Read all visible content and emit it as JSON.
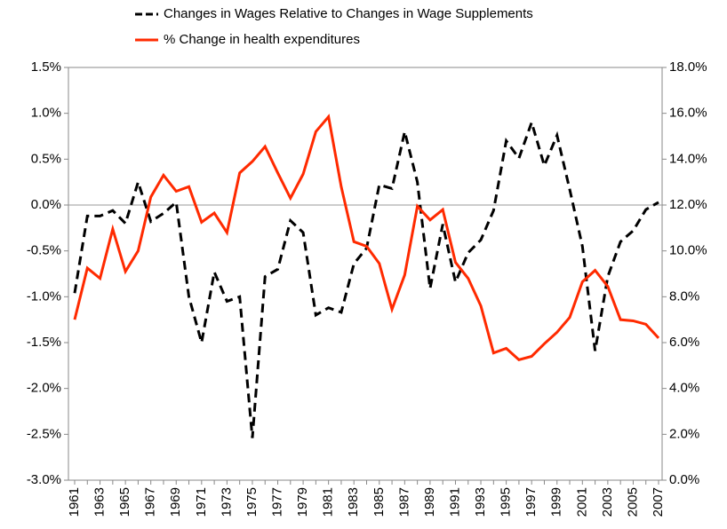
{
  "chart_data": {
    "type": "line",
    "categories": [
      "1961",
      null,
      "1963",
      null,
      "1965",
      null,
      "1967",
      null,
      "1969",
      null,
      "1971",
      null,
      "1973",
      null,
      "1975",
      null,
      "1977",
      null,
      "1979",
      null,
      "1981",
      null,
      "1983",
      null,
      "1985",
      null,
      "1987",
      null,
      "1989",
      null,
      "1991",
      null,
      "1993",
      null,
      "1995",
      null,
      "1997",
      null,
      "1999",
      null,
      "2001",
      null,
      "2003",
      null,
      "2005",
      null,
      "2007"
    ],
    "series": [
      {
        "name": "Changes in Wages Relative to Changes in Wage Supplements",
        "color": "#000000",
        "dashed": true,
        "axis": "y",
        "values": [
          -0.96,
          -0.12,
          -0.12,
          -0.06,
          -0.2,
          0.25,
          -0.18,
          -0.09,
          0.03,
          -1.0,
          -1.5,
          -0.73,
          -1.05,
          -1.0,
          -2.54,
          -0.78,
          -0.7,
          -0.17,
          -0.3,
          -1.2,
          -1.12,
          -1.17,
          -0.64,
          -0.47,
          0.22,
          0.18,
          0.8,
          0.25,
          -0.91,
          -0.21,
          -0.84,
          -0.52,
          -0.38,
          -0.06,
          0.7,
          0.51,
          0.9,
          0.43,
          0.76,
          0.17,
          -0.45,
          -1.59,
          -0.78,
          -0.4,
          -0.28,
          -0.05,
          0.03
        ]
      },
      {
        "name": "% Change in health expenditures",
        "color": "#ff2a00",
        "dashed": false,
        "axis": "y2",
        "values": [
          7.0,
          9.25,
          8.8,
          10.95,
          9.1,
          10.0,
          12.35,
          13.3,
          12.6,
          12.8,
          11.25,
          11.65,
          10.8,
          13.4,
          13.9,
          14.55,
          13.4,
          12.3,
          13.35,
          15.2,
          15.85,
          12.8,
          10.4,
          10.2,
          9.45,
          7.45,
          8.95,
          11.95,
          11.35,
          11.8,
          9.5,
          8.8,
          7.6,
          5.55,
          5.75,
          5.25,
          5.4,
          5.95,
          6.45,
          7.1,
          8.65,
          9.15,
          8.45,
          7.0,
          6.95,
          6.8,
          6.2
        ]
      }
    ],
    "ylim": [
      -3.0,
      1.5
    ],
    "yticks": [
      {
        "value": 1.5,
        "label": "1.5%"
      },
      {
        "value": 1.0,
        "label": "1.0%"
      },
      {
        "value": 0.5,
        "label": "0.5%"
      },
      {
        "value": 0.0,
        "label": "0.0%"
      },
      {
        "value": -0.5,
        "label": "-0.5%"
      },
      {
        "value": -1.0,
        "label": "-1.0%"
      },
      {
        "value": -1.5,
        "label": "-1.5%"
      },
      {
        "value": -2.0,
        "label": "-2.0%"
      },
      {
        "value": -2.5,
        "label": "-2.5%"
      },
      {
        "value": -3.0,
        "label": "-3.0%"
      }
    ],
    "y2lim": [
      0.0,
      18.0
    ],
    "y2ticks": [
      {
        "value": 18.0,
        "label": "18.0%"
      },
      {
        "value": 16.0,
        "label": "16.0%"
      },
      {
        "value": 14.0,
        "label": "14.0%"
      },
      {
        "value": 12.0,
        "label": "12.0%"
      },
      {
        "value": 10.0,
        "label": "10.0%"
      },
      {
        "value": 8.0,
        "label": "8.0%"
      },
      {
        "value": 6.0,
        "label": "6.0%"
      },
      {
        "value": 4.0,
        "label": "4.0%"
      },
      {
        "value": 2.0,
        "label": "2.0%"
      },
      {
        "value": 0.0,
        "label": "0.0%"
      }
    ],
    "zero_line": true,
    "legend": "top"
  }
}
